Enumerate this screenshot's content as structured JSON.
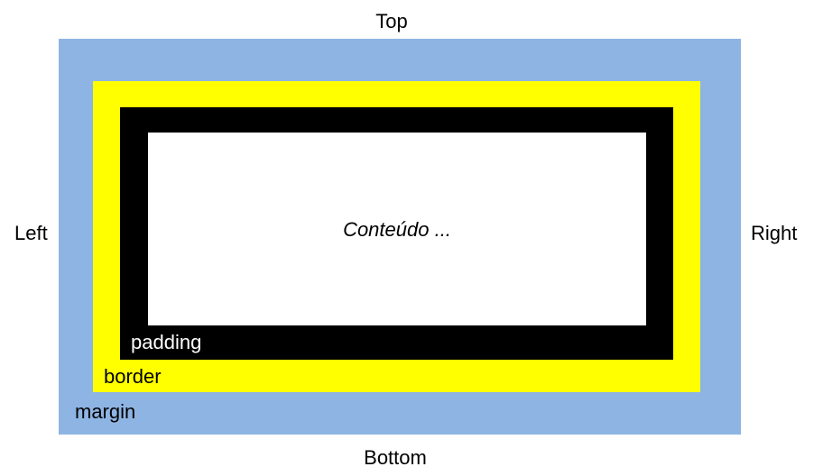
{
  "sides": {
    "top": "Top",
    "bottom": "Bottom",
    "left": "Left",
    "right": "Right"
  },
  "layers": {
    "margin": {
      "label": "margin",
      "color": "#8EB4E3"
    },
    "border": {
      "label": "border",
      "color": "#FFFF00"
    },
    "padding": {
      "label": "padding",
      "color": "#000000"
    },
    "content": {
      "label": "Conteúdo ...",
      "color": "#FFFFFF"
    }
  }
}
